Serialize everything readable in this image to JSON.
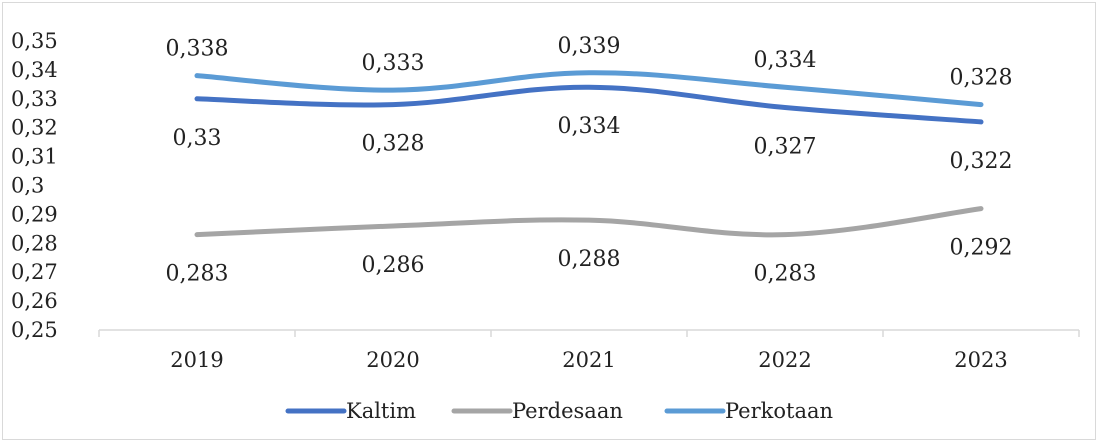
{
  "chart_data": {
    "type": "line",
    "title": "",
    "xlabel": "",
    "ylabel": "",
    "categories": [
      "2019",
      "2020",
      "2021",
      "2022",
      "2023"
    ],
    "ylim": [
      0.25,
      0.35
    ],
    "ytick_step": 0.01,
    "ytick_labels": [
      "0,25",
      "0,26",
      "0,27",
      "0,28",
      "0,29",
      "0,3",
      "0,31",
      "0,32",
      "0,33",
      "0,34",
      "0,35"
    ],
    "grid": false,
    "legend_position": "bottom",
    "series": [
      {
        "name": "Kaltim",
        "color": "#4472c4",
        "values": [
          0.33,
          0.328,
          0.334,
          0.327,
          0.322
        ],
        "labels": [
          "0,33",
          "0,328",
          "0,334",
          "0,327",
          "0,322"
        ],
        "label_side": "below"
      },
      {
        "name": "Perdesaan",
        "color": "#a5a5a5",
        "values": [
          0.283,
          0.286,
          0.288,
          0.283,
          0.292
        ],
        "labels": [
          "0,283",
          "0,286",
          "0,288",
          "0,283",
          "0,292"
        ],
        "label_side": "below"
      },
      {
        "name": "Perkotaan",
        "color": "#5b9bd5",
        "values": [
          0.338,
          0.333,
          0.339,
          0.334,
          0.328
        ],
        "labels": [
          "0,338",
          "0,333",
          "0,339",
          "0,334",
          "0,328"
        ],
        "label_side": "above"
      }
    ]
  }
}
